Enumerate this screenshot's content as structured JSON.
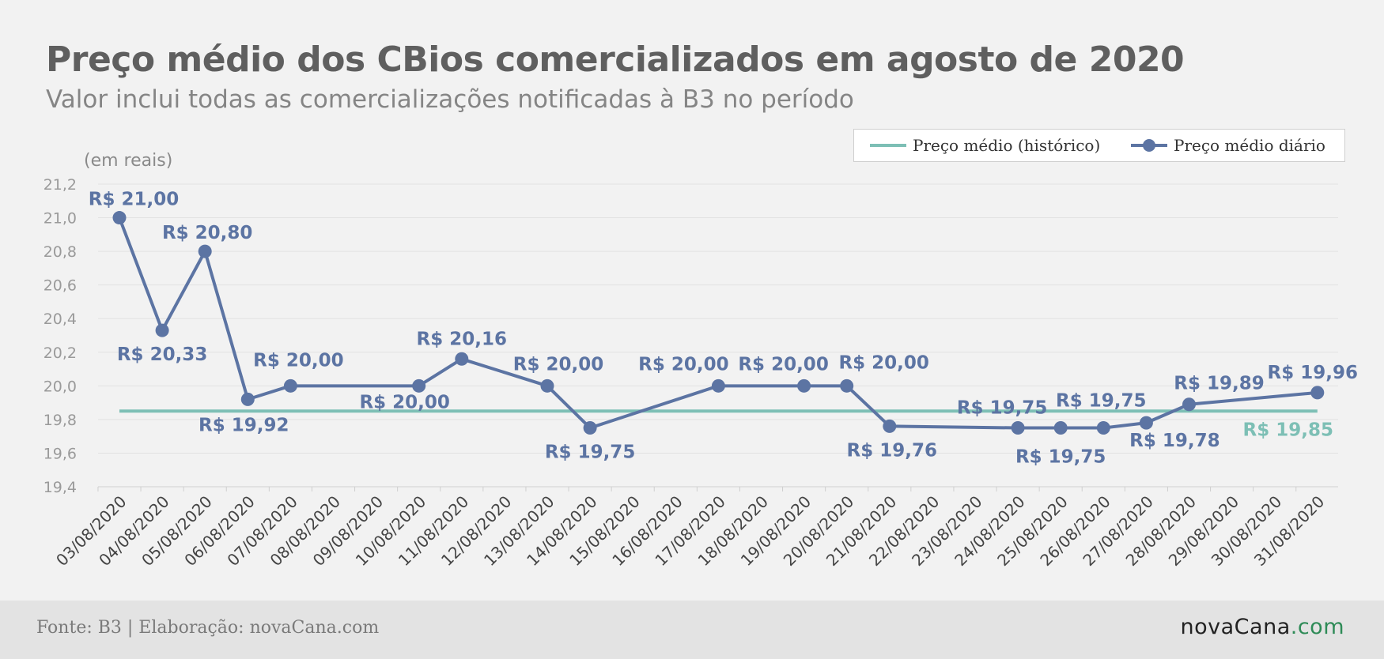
{
  "header": {
    "title": "Preço médio dos CBios comercializados em agosto de 2020",
    "subtitle": "Valor inclui todas as comercializações notificadas à B3 no período"
  },
  "legend": {
    "historical": "Preço médio (histórico)",
    "daily": "Preço médio diário"
  },
  "footer": {
    "source": "Fonte: B3 | Elaboração: novaCana.com",
    "logo_main": "novaCana",
    "logo_suffix": ".com"
  },
  "colors": {
    "daily_series": "#5c74a3",
    "historical_line": "#7dbfb5",
    "grid": "#e2e2e2",
    "tick_label": "#9a9a9a"
  },
  "chart_data": {
    "type": "line",
    "ylabel": "(em reais)",
    "ylim": [
      19.4,
      21.2
    ],
    "yticks": [
      "19,4",
      "19,6",
      "19,8",
      "20,0",
      "20,2",
      "20,4",
      "20,6",
      "20,8",
      "21,0",
      "21,2"
    ],
    "grid": true,
    "legend_position": "top-right",
    "categories": [
      "03/08/2020",
      "04/08/2020",
      "05/08/2020",
      "06/08/2020",
      "07/08/2020",
      "08/08/2020",
      "09/08/2020",
      "10/08/2020",
      "11/08/2020",
      "12/08/2020",
      "13/08/2020",
      "14/08/2020",
      "15/08/2020",
      "16/08/2020",
      "17/08/2020",
      "18/08/2020",
      "19/08/2020",
      "20/08/2020",
      "21/08/2020",
      "22/08/2020",
      "23/08/2020",
      "24/08/2020",
      "25/08/2020",
      "26/08/2020",
      "27/08/2020",
      "28/08/2020",
      "29/08/2020",
      "30/08/2020",
      "31/08/2020"
    ],
    "series": [
      {
        "name": "Preço médio diário",
        "values": [
          21.0,
          20.33,
          20.8,
          19.92,
          20.0,
          null,
          null,
          20.0,
          20.16,
          null,
          20.0,
          19.75,
          null,
          null,
          20.0,
          null,
          20.0,
          20.0,
          19.76,
          null,
          null,
          19.75,
          19.75,
          19.75,
          19.78,
          19.89,
          null,
          null,
          19.96
        ],
        "labels": [
          "R$ 21,00",
          "R$ 20,33",
          "R$ 20,80",
          "R$ 19,92",
          "R$ 20,00",
          null,
          null,
          "R$ 20,00",
          "R$ 20,16",
          null,
          "R$ 20,00",
          "R$ 19,75",
          null,
          null,
          "R$ 20,00",
          null,
          "R$ 20,00",
          "R$ 20,00",
          "R$ 19,76",
          null,
          null,
          "R$ 19,75",
          "R$ 19,75",
          "R$ 19,75",
          "R$ 19,78",
          "R$ 19,89",
          null,
          null,
          "R$ 19,96"
        ]
      },
      {
        "name": "Preço médio (histórico)",
        "constant": 19.85,
        "label": "R$ 19,85"
      }
    ]
  }
}
